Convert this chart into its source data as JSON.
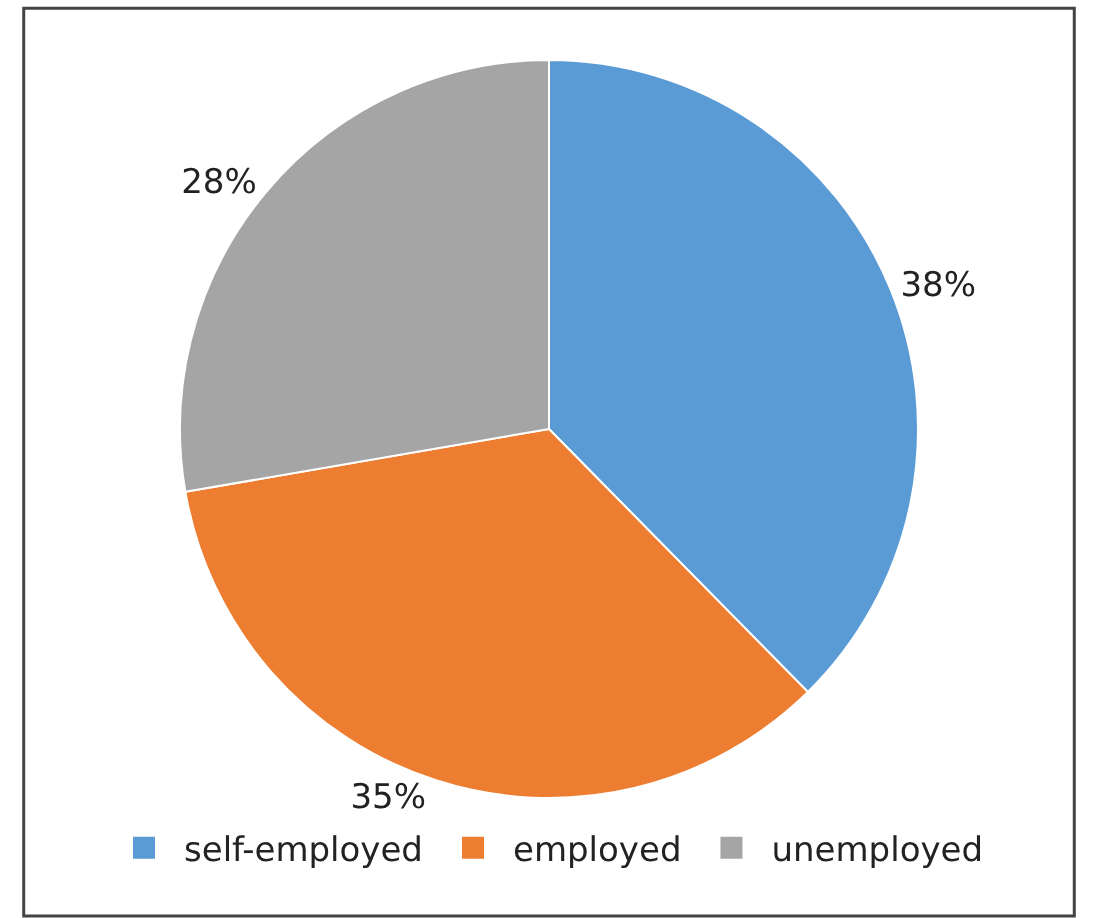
{
  "chart_data": {
    "type": "pie",
    "categories": [
      "self-employed",
      "employed",
      "unemployed"
    ],
    "values": [
      38,
      35,
      28
    ],
    "colors": [
      "#5b9bd5",
      "#ed7d31",
      "#a5a5a5"
    ],
    "value_labels": [
      "38%",
      "35%",
      "28%"
    ],
    "legend": "bottom"
  }
}
